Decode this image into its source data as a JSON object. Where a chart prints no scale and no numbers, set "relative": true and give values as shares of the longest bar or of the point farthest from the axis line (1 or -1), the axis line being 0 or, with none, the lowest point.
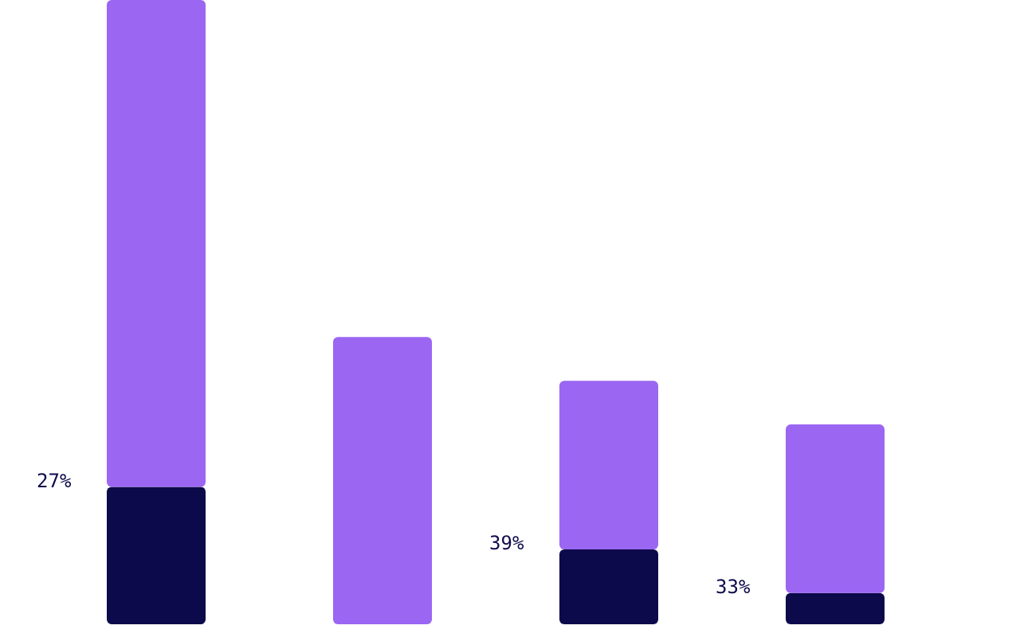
{
  "chart_data": {
    "type": "bar",
    "relative": true,
    "stacked": true,
    "categories": [
      null,
      null,
      null,
      null
    ],
    "series": [
      {
        "color": "#0c0a4a",
        "values": [
          0.22,
          0,
          0.12,
          0.05
        ]
      },
      {
        "color": "#9b66f2",
        "values": [
          0.78,
          0.46,
          0.27,
          0.27
        ]
      }
    ],
    "annotations": [
      "27%",
      "39%",
      "33%"
    ]
  }
}
